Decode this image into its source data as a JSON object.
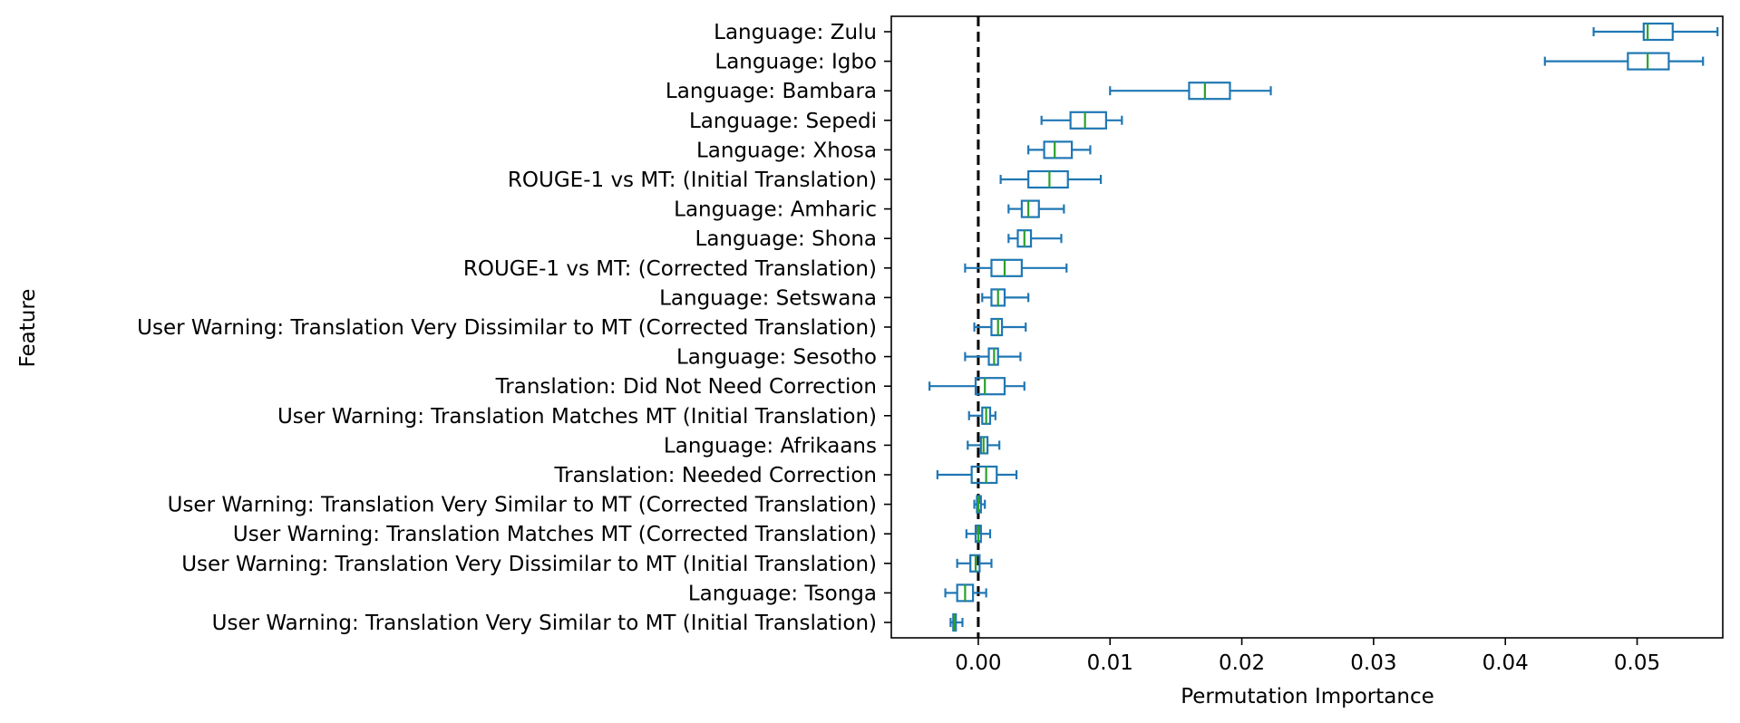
{
  "chart_data": {
    "type": "boxplot",
    "orientation": "horizontal",
    "xlabel": "Permutation Importance",
    "ylabel": "Feature",
    "xlim": [
      -0.0066,
      0.0565
    ],
    "xticks": [
      0.0,
      0.01,
      0.02,
      0.03,
      0.04,
      0.05
    ],
    "xtick_labels": [
      "0.00",
      "0.01",
      "0.02",
      "0.03",
      "0.04",
      "0.05"
    ],
    "reference_line": {
      "x": 0.0,
      "style": "dashed",
      "color": "#000000"
    },
    "colors": {
      "box": "#1f77b4",
      "median": "#2ca02c"
    },
    "features": [
      {
        "name": "Language: Zulu",
        "whislo": 0.0467,
        "q1": 0.0505,
        "median": 0.0508,
        "q3": 0.0527,
        "whishi": 0.0561
      },
      {
        "name": "Language: Igbo",
        "whislo": 0.043,
        "q1": 0.0493,
        "median": 0.0508,
        "q3": 0.0524,
        "whishi": 0.055
      },
      {
        "name": "Language: Bambara",
        "whislo": 0.01,
        "q1": 0.016,
        "median": 0.0172,
        "q3": 0.0191,
        "whishi": 0.0222
      },
      {
        "name": "Language: Sepedi",
        "whislo": 0.0048,
        "q1": 0.007,
        "median": 0.0081,
        "q3": 0.0097,
        "whishi": 0.0109
      },
      {
        "name": "Language: Xhosa",
        "whislo": 0.0038,
        "q1": 0.005,
        "median": 0.0058,
        "q3": 0.0071,
        "whishi": 0.0085
      },
      {
        "name": "ROUGE-1 vs MT: (Initial Translation)",
        "whislo": 0.0017,
        "q1": 0.0038,
        "median": 0.0054,
        "q3": 0.0068,
        "whishi": 0.0093
      },
      {
        "name": "Language: Amharic",
        "whislo": 0.0023,
        "q1": 0.0033,
        "median": 0.0038,
        "q3": 0.0046,
        "whishi": 0.0065
      },
      {
        "name": "Language: Shona",
        "whislo": 0.0023,
        "q1": 0.003,
        "median": 0.0035,
        "q3": 0.004,
        "whishi": 0.0063
      },
      {
        "name": "ROUGE-1 vs MT: (Corrected Translation)",
        "whislo": -0.001,
        "q1": 0.001,
        "median": 0.002,
        "q3": 0.0033,
        "whishi": 0.0067
      },
      {
        "name": "Language: Setswana",
        "whislo": 0.0003,
        "q1": 0.001,
        "median": 0.0015,
        "q3": 0.002,
        "whishi": 0.0038
      },
      {
        "name": "User Warning: Translation Very Dissimilar to MT (Corrected Translation)",
        "whislo": -0.0003,
        "q1": 0.001,
        "median": 0.0015,
        "q3": 0.0018,
        "whishi": 0.0036
      },
      {
        "name": "Language: Sesotho",
        "whislo": -0.001,
        "q1": 0.0008,
        "median": 0.0012,
        "q3": 0.0015,
        "whishi": 0.0032
      },
      {
        "name": "Translation: Did Not Need Correction",
        "whislo": -0.0037,
        "q1": -0.0002,
        "median": 0.0005,
        "q3": 0.002,
        "whishi": 0.0035
      },
      {
        "name": "User Warning: Translation Matches MT (Initial Translation)",
        "whislo": -0.0007,
        "q1": 0.0003,
        "median": 0.0006,
        "q3": 0.0009,
        "whishi": 0.0013
      },
      {
        "name": "Language: Afrikaans",
        "whislo": -0.0008,
        "q1": 0.0002,
        "median": 0.0004,
        "q3": 0.0007,
        "whishi": 0.0016
      },
      {
        "name": "Translation: Needed Correction",
        "whislo": -0.0031,
        "q1": -0.0005,
        "median": 0.0006,
        "q3": 0.0014,
        "whishi": 0.0029
      },
      {
        "name": "User Warning: Translation Very Similar to MT (Corrected Translation)",
        "whislo": -0.0003,
        "q1": -0.0001,
        "median": 0.0,
        "q3": 0.0002,
        "whishi": 0.0005
      },
      {
        "name": "User Warning: Translation Matches MT (Corrected Translation)",
        "whislo": -0.0009,
        "q1": -0.0002,
        "median": 0.0,
        "q3": 0.0002,
        "whishi": 0.0009
      },
      {
        "name": "User Warning: Translation Very Dissimilar to MT (Initial Translation)",
        "whislo": -0.0016,
        "q1": -0.0006,
        "median": -0.0002,
        "q3": 0.0001,
        "whishi": 0.001
      },
      {
        "name": "Language: Tsonga",
        "whislo": -0.0025,
        "q1": -0.0016,
        "median": -0.001,
        "q3": -0.0004,
        "whishi": 0.0006
      },
      {
        "name": "User Warning: Translation Very Similar to MT (Initial Translation)",
        "whislo": -0.0021,
        "q1": -0.0019,
        "median": -0.0018,
        "q3": -0.0017,
        "whishi": -0.0012
      }
    ]
  }
}
